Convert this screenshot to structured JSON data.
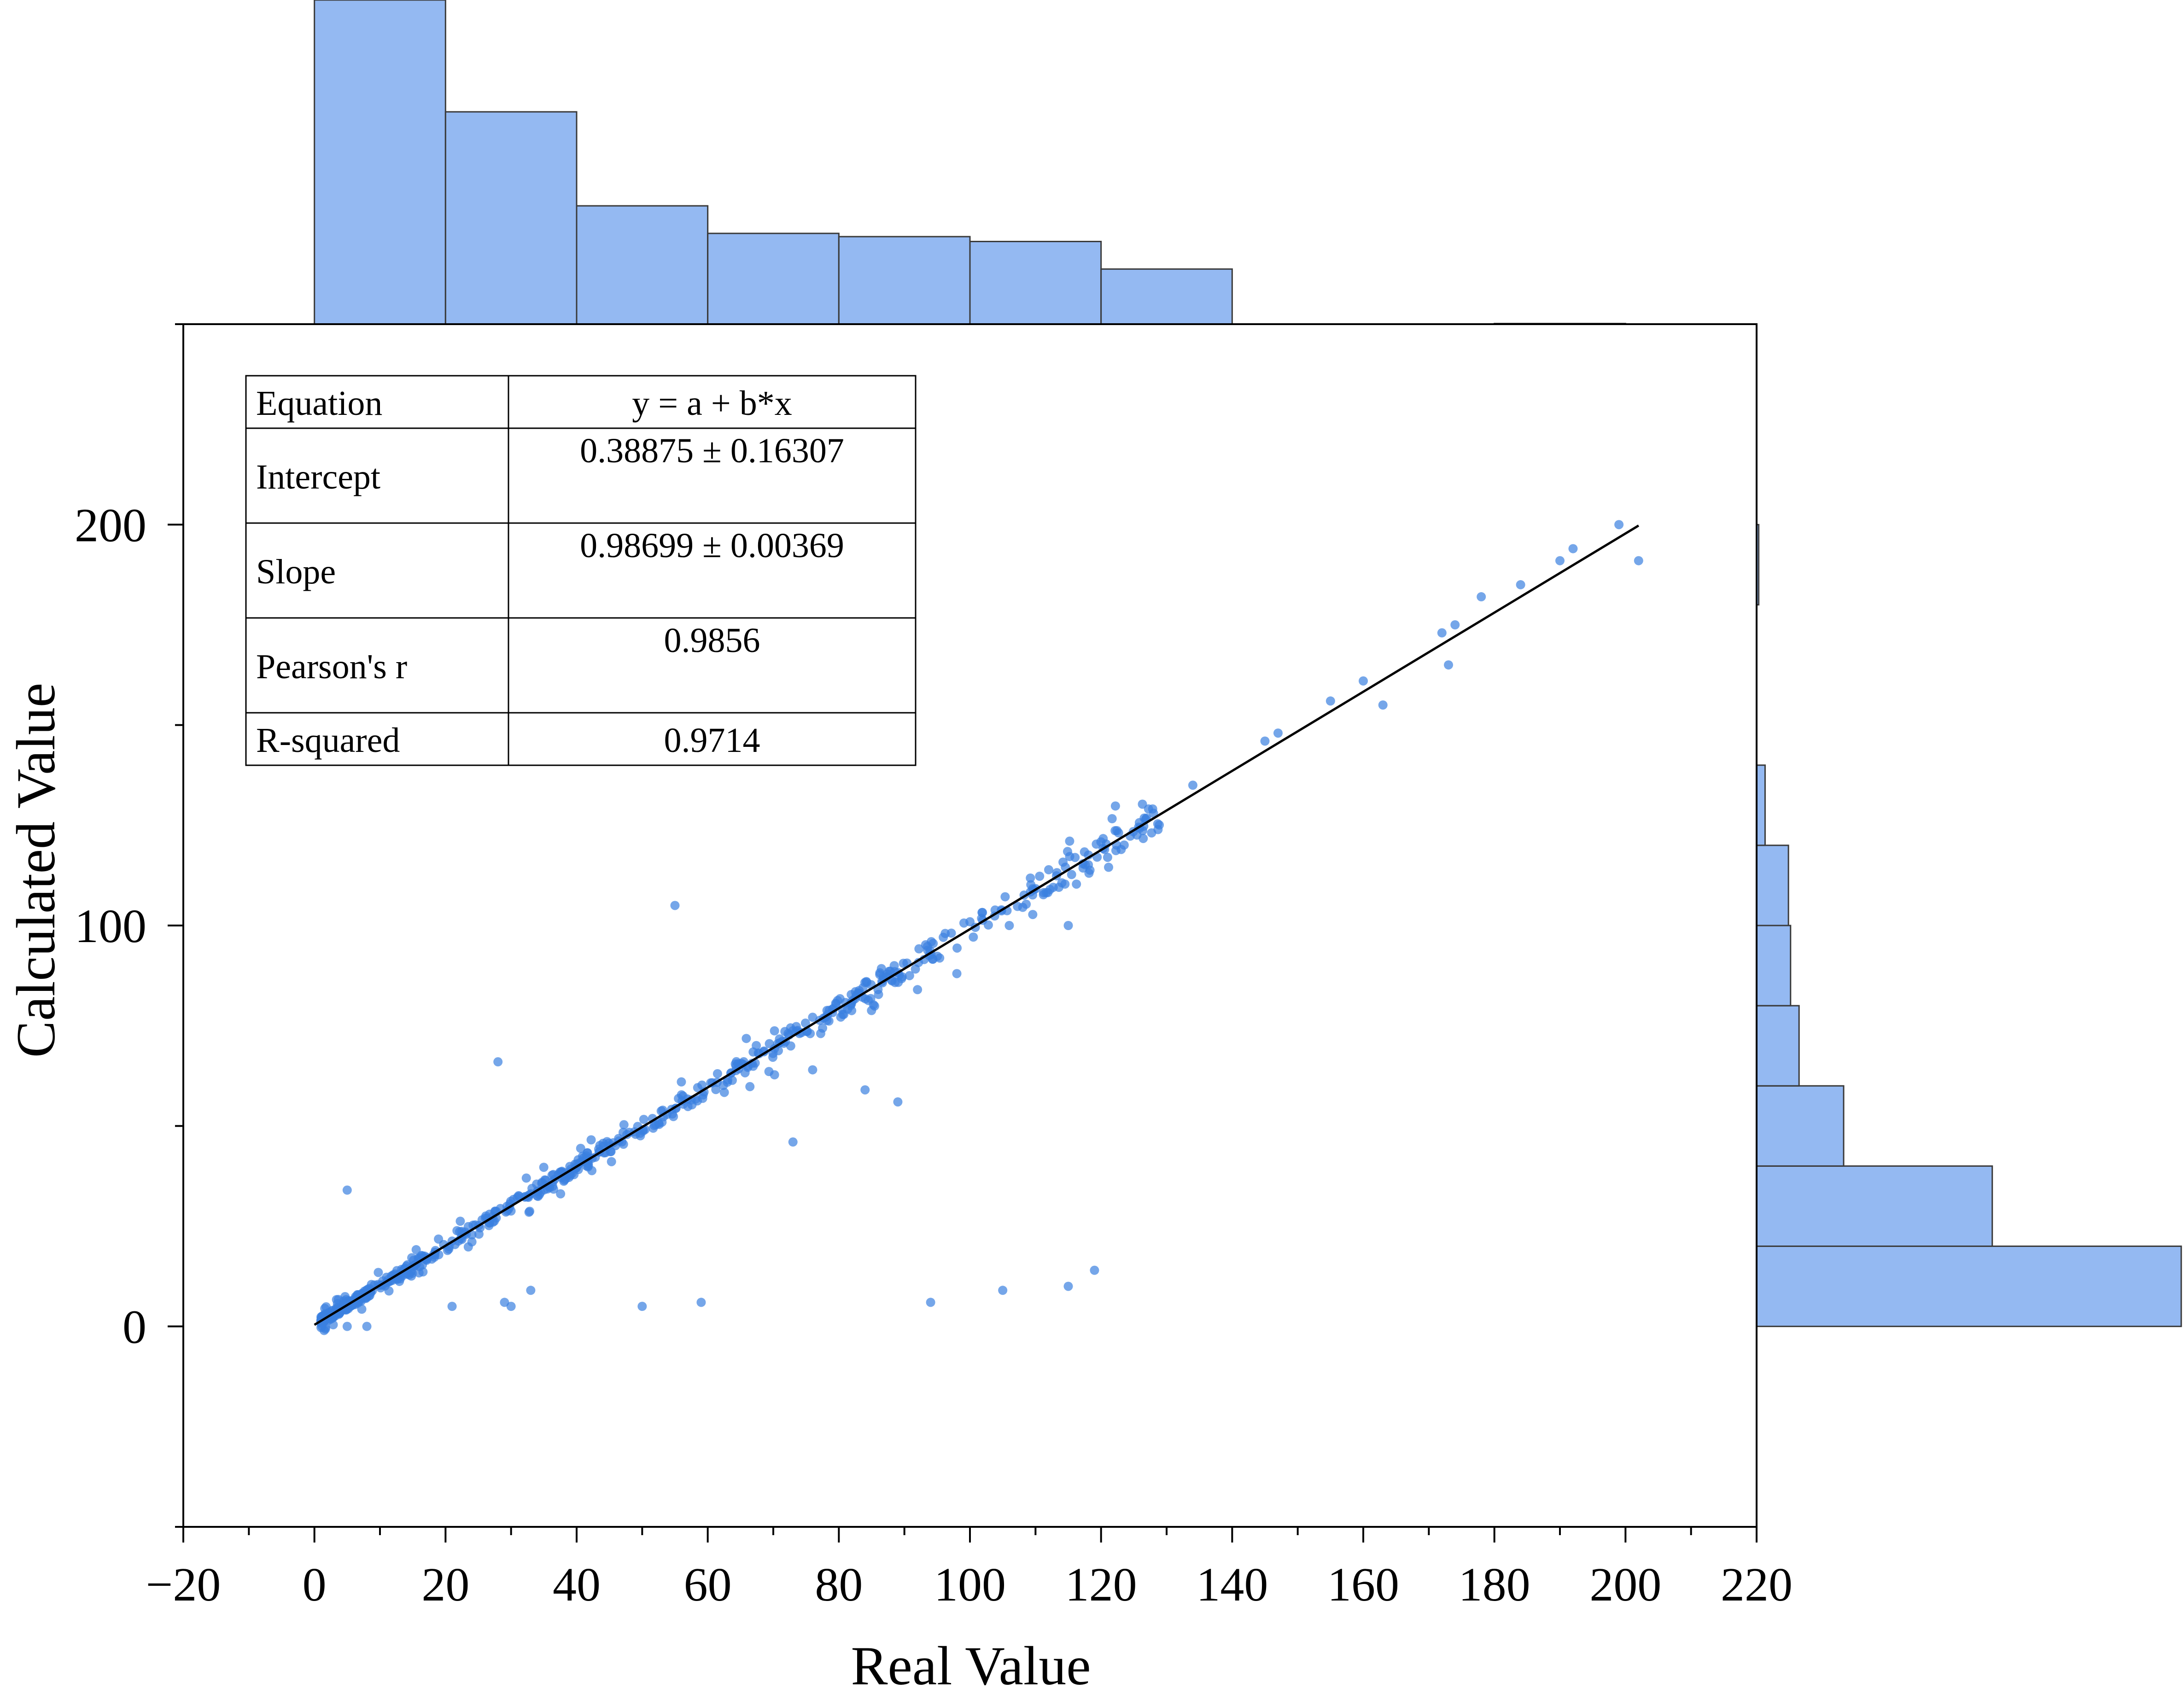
{
  "chart_data": {
    "type": "scatter",
    "xlabel": "Real Value",
    "ylabel": "Calculated Value",
    "xlim": [
      -20,
      220
    ],
    "ylim": [
      -50,
      250
    ],
    "x_ticks": [
      -20,
      0,
      20,
      40,
      60,
      80,
      100,
      120,
      140,
      160,
      180,
      200,
      220
    ],
    "y_ticks": [
      0,
      100,
      200
    ],
    "grid": false,
    "point_color": "#3a80e0",
    "hist_color": "#94b9f2",
    "fit": {
      "intercept": 0.38875,
      "slope": 0.98699,
      "x_range": [
        0,
        202
      ]
    },
    "stats_table": [
      {
        "label": "Equation",
        "value": "y = a + b*x"
      },
      {
        "label": "Intercept",
        "value": "0.38875 ± 0.16307"
      },
      {
        "label": "Slope",
        "value": "0.98699 ± 0.00369"
      },
      {
        "label": "Pearson's r",
        "value": "0.9856"
      },
      {
        "label": "R-squared",
        "value": "0.9714"
      }
    ],
    "x_histogram": {
      "bin_edges": [
        0,
        20,
        40,
        60,
        80,
        100,
        120,
        140,
        160,
        180,
        200
      ],
      "counts": [
        1000,
        655,
        365,
        280,
        270,
        255,
        170,
        0,
        0,
        2
      ]
    },
    "y_histogram": {
      "bin_edges": [
        0,
        20,
        40,
        60,
        80,
        100,
        120,
        140,
        160,
        180,
        200
      ],
      "counts": [
        1000,
        555,
        205,
        100,
        80,
        75,
        20,
        0,
        0,
        5
      ]
    },
    "outliers": [
      [
        5,
        34
      ],
      [
        28,
        66
      ],
      [
        55,
        105
      ],
      [
        73,
        46
      ],
      [
        84,
        59
      ],
      [
        89,
        56
      ],
      [
        76,
        64
      ],
      [
        21,
        5
      ],
      [
        29,
        6
      ],
      [
        30,
        5
      ],
      [
        33,
        9
      ],
      [
        50,
        5
      ],
      [
        59,
        6
      ],
      [
        94,
        6
      ],
      [
        105,
        9
      ],
      [
        115,
        10
      ],
      [
        119,
        14
      ],
      [
        8,
        0
      ],
      [
        5,
        0
      ],
      [
        163,
        155
      ],
      [
        173,
        165
      ],
      [
        202,
        191
      ],
      [
        121,
        117
      ],
      [
        115,
        100
      ],
      [
        98,
        88
      ],
      [
        106,
        100
      ],
      [
        92,
        84
      ]
    ],
    "upper_points": [
      [
        128,
        128
      ],
      [
        134,
        135
      ],
      [
        145,
        146
      ],
      [
        147,
        148
      ],
      [
        155,
        156
      ],
      [
        160,
        161
      ],
      [
        172,
        173
      ],
      [
        174,
        175
      ],
      [
        178,
        182
      ],
      [
        184,
        185
      ],
      [
        190,
        191
      ],
      [
        192,
        194
      ],
      [
        199,
        200
      ]
    ]
  }
}
